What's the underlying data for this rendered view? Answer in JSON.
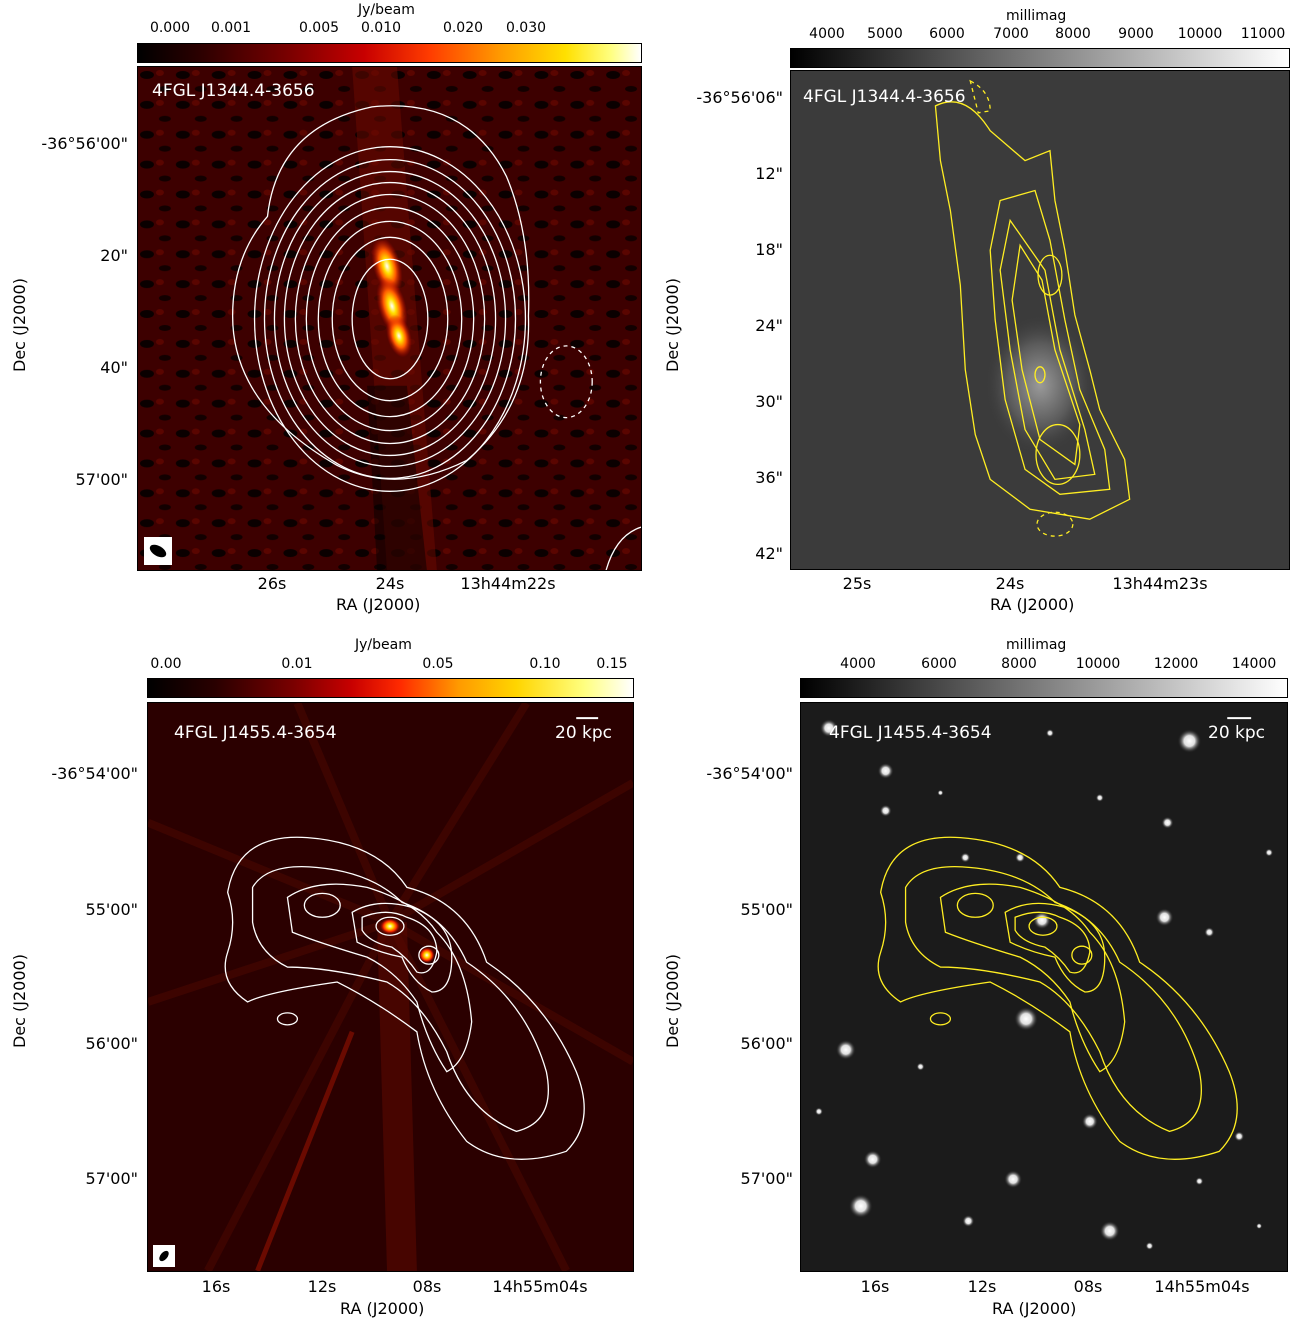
{
  "panels": [
    {
      "source_label": "4FGL J1344.4-3656",
      "colorbar": {
        "title": "Jy/beam",
        "ticks": [
          "0.000",
          "0.001",
          "0.005",
          "0.010",
          "0.020",
          "0.030"
        ],
        "colormap": "hot"
      },
      "yticks": [
        "-36°56'00\"",
        "20\"",
        "40\"",
        "57'00\""
      ],
      "xticks": [
        "26s",
        "24s",
        "13h44m22s"
      ],
      "xlabel": "RA (J2000)",
      "ylabel": "Dec (J2000)",
      "contour_color": "#ffffff"
    },
    {
      "source_label": "4FGL J1344.4-3656",
      "colorbar": {
        "title": "millimag",
        "ticks": [
          "4000",
          "5000",
          "6000",
          "7000",
          "8000",
          "9000",
          "10000",
          "11000"
        ],
        "colormap": "gray"
      },
      "yticks": [
        "-36°56'06\"",
        "12\"",
        "18\"",
        "24\"",
        "30\"",
        "36\"",
        "42\""
      ],
      "xticks": [
        "25s",
        "24s",
        "13h44m23s"
      ],
      "xlabel": "RA (J2000)",
      "ylabel": "Dec (J2000)",
      "contour_color": "#ffee22"
    },
    {
      "source_label": "4FGL J1455.4-3654",
      "scale_bar": "20 kpc",
      "colorbar": {
        "title": "Jy/beam",
        "ticks": [
          "0.00",
          "0.01",
          "0.05",
          "0.10",
          "0.15"
        ],
        "colormap": "hot"
      },
      "yticks": [
        "-36°54'00\"",
        "55'00\"",
        "56'00\"",
        "57'00\""
      ],
      "xticks": [
        "16s",
        "12s",
        "08s",
        "14h55m04s"
      ],
      "xlabel": "RA (J2000)",
      "ylabel": "Dec (J2000)",
      "contour_color": "#ffffff"
    },
    {
      "source_label": "4FGL J1455.4-3654",
      "scale_bar": "20 kpc",
      "colorbar": {
        "title": "millimag",
        "ticks": [
          "4000",
          "6000",
          "8000",
          "10000",
          "12000",
          "14000"
        ],
        "colormap": "gray"
      },
      "yticks": [
        "-36°54'00\"",
        "55'00\"",
        "56'00\"",
        "57'00\""
      ],
      "xticks": [
        "16s",
        "12s",
        "08s",
        "14h55m04s"
      ],
      "xlabel": "RA (J2000)",
      "ylabel": "Dec (J2000)",
      "contour_color": "#ffee22"
    }
  ]
}
